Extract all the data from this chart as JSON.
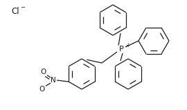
{
  "bg_color": "#ffffff",
  "line_color": "#1a1a1a",
  "line_width": 0.9,
  "font_size_atom": 6.5,
  "font_size_charge": 5.0,
  "font_size_cl": 8.5,
  "cl_label": "Cl",
  "cl_charge": "−",
  "p_label": "P",
  "p_charge": "+",
  "n_label": "N",
  "o_label": "O",
  "figsize": [
    2.7,
    1.59
  ],
  "dpi": 100,
  "xlim": [
    0,
    270
  ],
  "ylim": [
    0,
    159
  ]
}
